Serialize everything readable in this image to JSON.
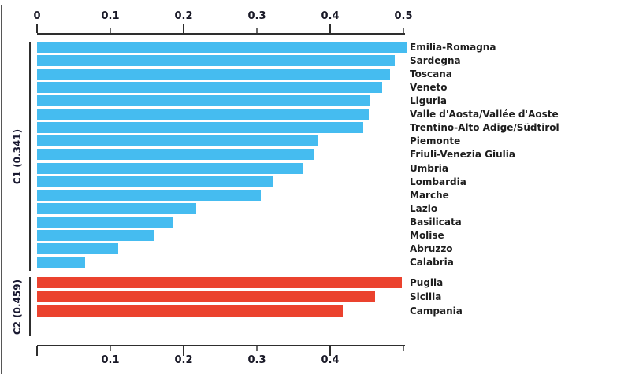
{
  "chart_data": {
    "type": "bar",
    "orientation": "horizontal",
    "title": "",
    "xlabel": "",
    "ylabel": "",
    "xlim": [
      0,
      0.5
    ],
    "grid": false,
    "legend": false,
    "axis_color": "#2e2e2e",
    "top_axis_ticks": [
      {
        "value": 0.0,
        "label": "0",
        "major": true
      },
      {
        "value": 0.1,
        "label": "0.1",
        "major": false
      },
      {
        "value": 0.2,
        "label": "0.2",
        "major": true
      },
      {
        "value": 0.3,
        "label": "0.3",
        "major": false
      },
      {
        "value": 0.4,
        "label": "0.4",
        "major": true
      },
      {
        "value": 0.5,
        "label": "0.5",
        "major": false
      }
    ],
    "bottom_axis_ticks": [
      {
        "value": 0.0,
        "label": "",
        "major": true
      },
      {
        "value": 0.1,
        "label": "0.1",
        "major": false
      },
      {
        "value": 0.2,
        "label": "0.2",
        "major": true
      },
      {
        "value": 0.3,
        "label": "0.3",
        "major": false
      },
      {
        "value": 0.4,
        "label": "0.4",
        "major": true
      },
      {
        "value": 0.5,
        "label": "",
        "major": false
      }
    ],
    "groups": [
      {
        "name": "C1",
        "bracket_label": "C1 (0.341)",
        "bar_color": "#45BCF0",
        "bars": [
          {
            "label": "Emilia-Romagna",
            "value": 0.505
          },
          {
            "label": "Sardegna",
            "value": 0.488
          },
          {
            "label": "Toscana",
            "value": 0.482
          },
          {
            "label": "Veneto",
            "value": 0.471
          },
          {
            "label": "Liguria",
            "value": 0.454
          },
          {
            "label": "Valle d'Aosta/Vallée d'Aoste",
            "value": 0.453
          },
          {
            "label": "Trentino-Alto Adige/Südtirol",
            "value": 0.445
          },
          {
            "label": "Piemonte",
            "value": 0.383
          },
          {
            "label": "Friuli-Venezia Giulia",
            "value": 0.379
          },
          {
            "label": "Umbria",
            "value": 0.363
          },
          {
            "label": "Lombardia",
            "value": 0.322
          },
          {
            "label": "Marche",
            "value": 0.305
          },
          {
            "label": "Lazio",
            "value": 0.217
          },
          {
            "label": "Basilicata",
            "value": 0.186
          },
          {
            "label": "Molise",
            "value": 0.16
          },
          {
            "label": "Abruzzo",
            "value": 0.111
          },
          {
            "label": "Calabria",
            "value": 0.066
          }
        ]
      },
      {
        "name": "C2",
        "bracket_label": "C2 (0.459)",
        "bar_color": "#EB422E",
        "bars": [
          {
            "label": "Puglia",
            "value": 0.498
          },
          {
            "label": "Sicilia",
            "value": 0.461
          },
          {
            "label": "Campania",
            "value": 0.417
          }
        ]
      }
    ]
  }
}
